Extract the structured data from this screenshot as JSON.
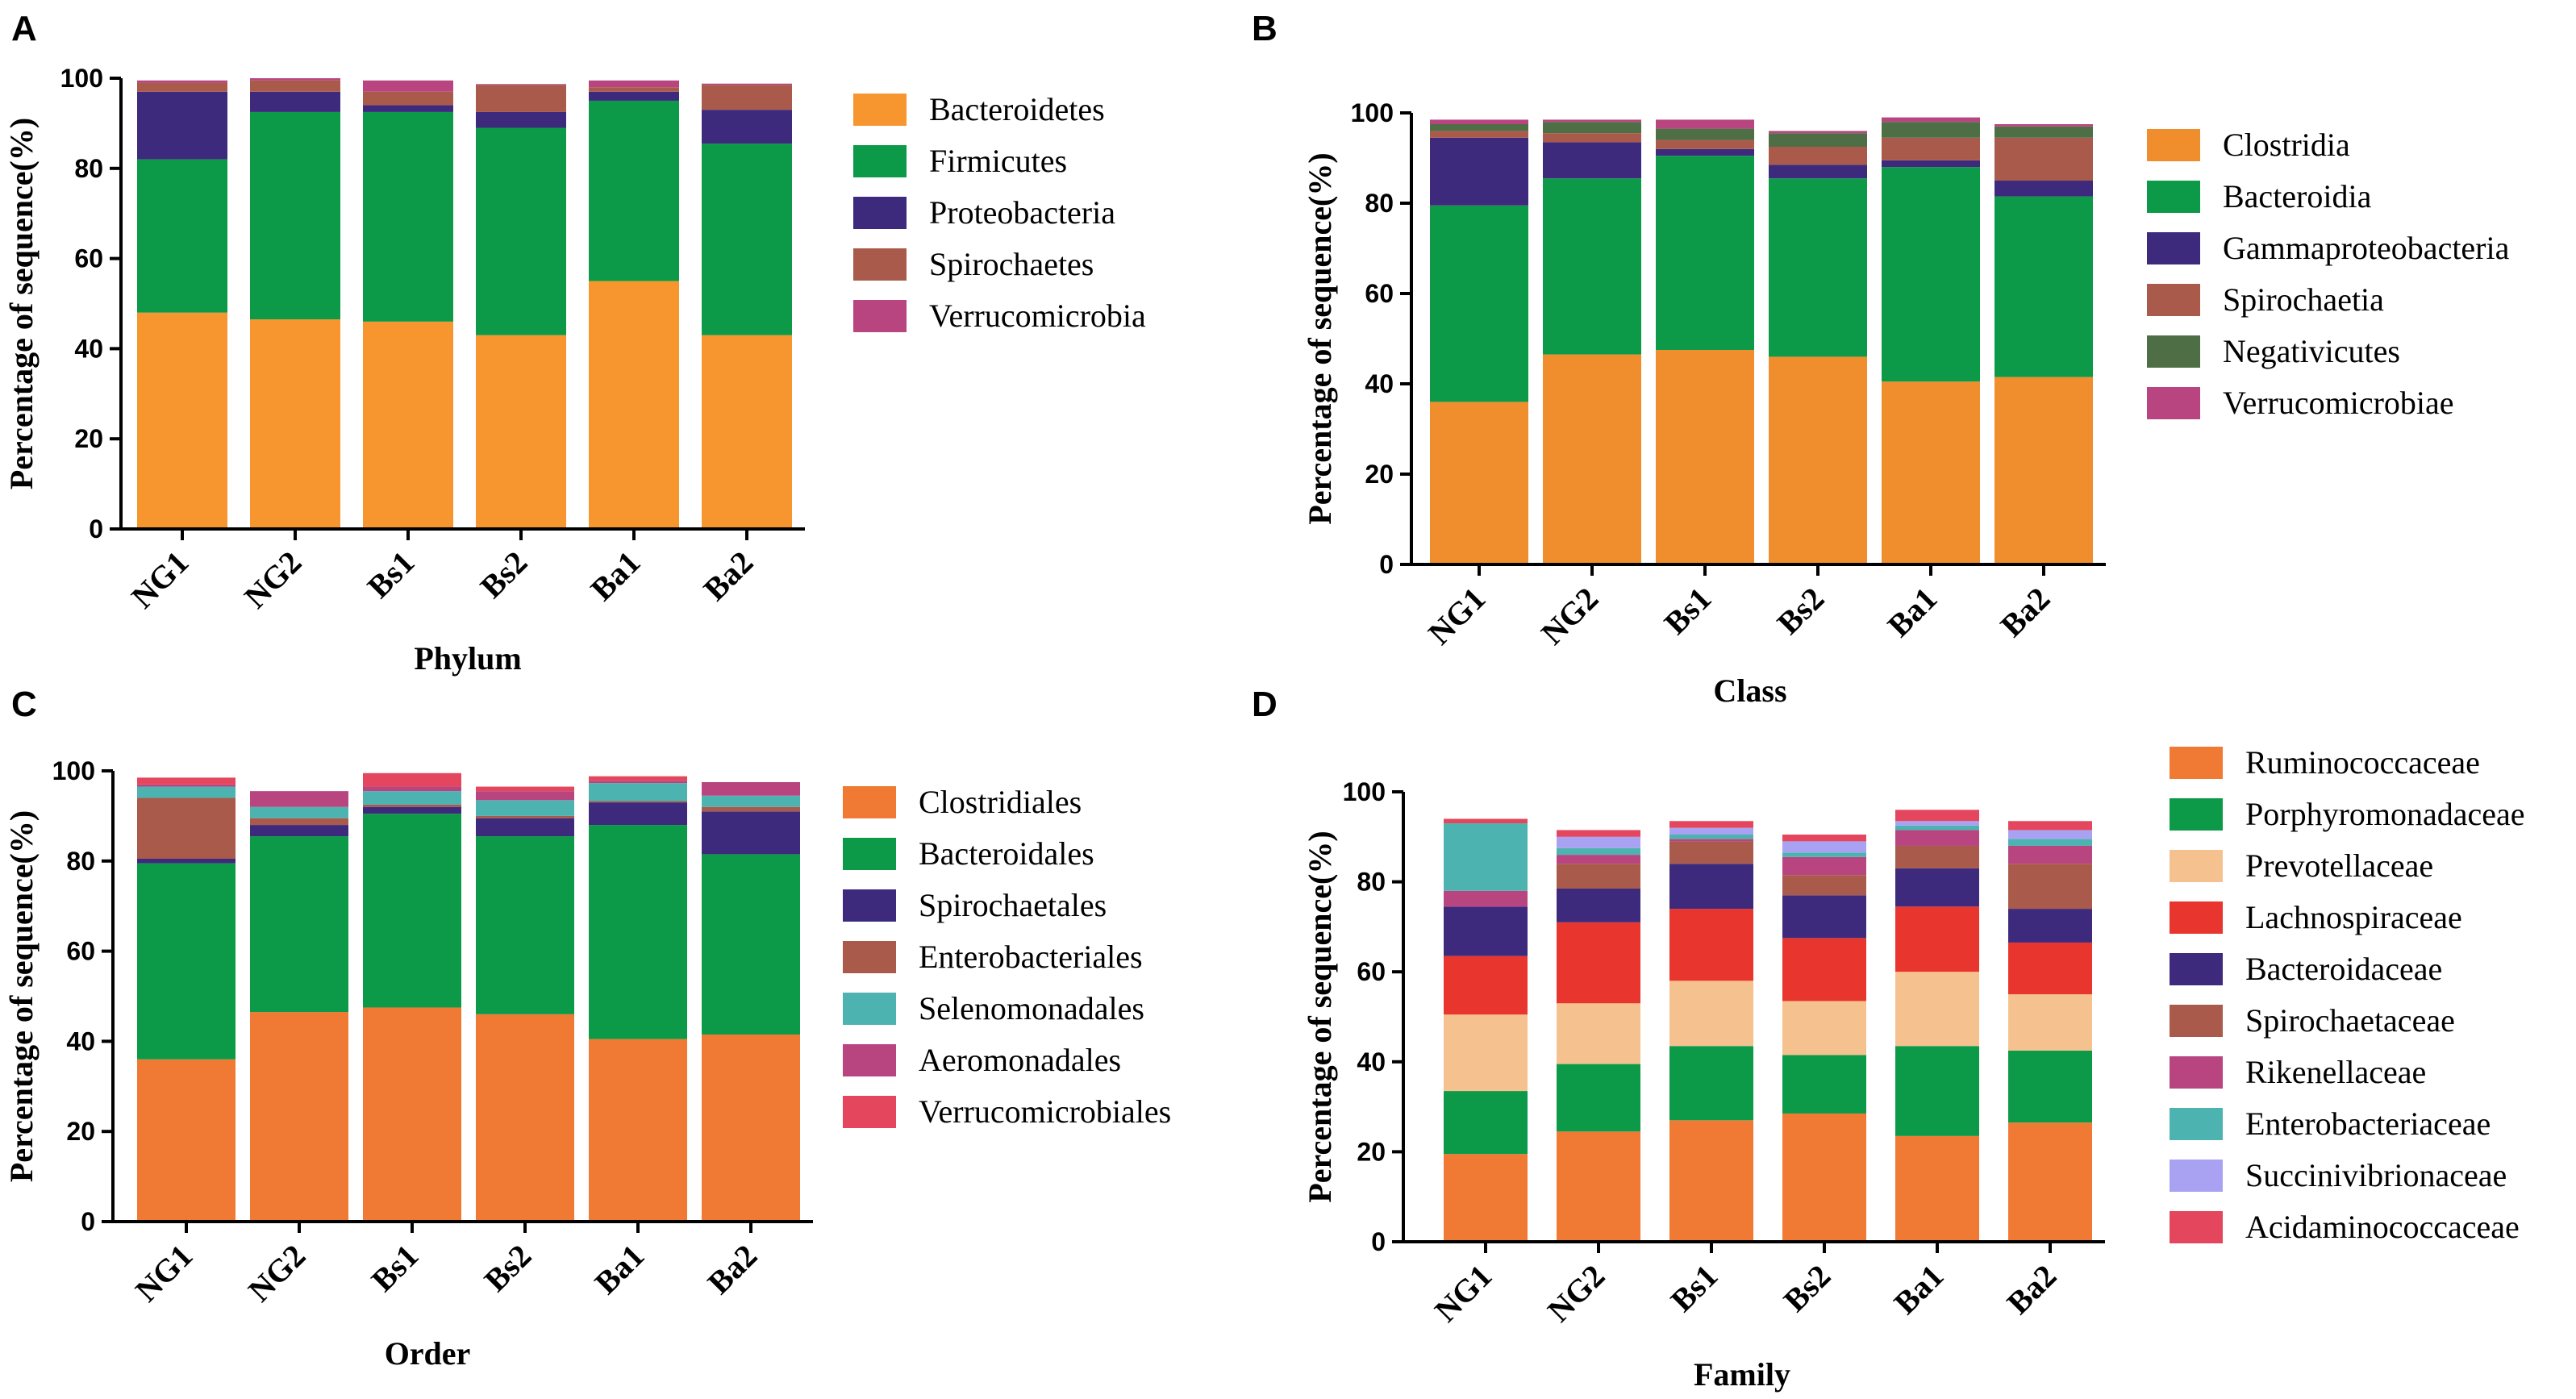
{
  "chart_data": [
    {
      "panel": "A",
      "type": "bar",
      "stacked": true,
      "categories": [
        "NG1",
        "NG2",
        "Bs1",
        "Bs2",
        "Ba1",
        "Ba2"
      ],
      "xlabel": "Phylum",
      "ylabel": "Percentage of sequence(%)",
      "ylim": [
        0,
        100
      ],
      "yticks": [
        0,
        20,
        40,
        60,
        80,
        100
      ],
      "legend_position": "right",
      "series": [
        {
          "name": "Bacteroidetes",
          "color": "#F7952E",
          "values": [
            48,
            46.5,
            46,
            43,
            55,
            43
          ]
        },
        {
          "name": "Firmicutes",
          "color": "#0D9A48",
          "values": [
            34,
            46,
            46.5,
            46,
            40,
            42.5
          ]
        },
        {
          "name": "Proteobacteria",
          "color": "#3D2A7D",
          "values": [
            15,
            4.5,
            1.5,
            3.5,
            2,
            7.5
          ]
        },
        {
          "name": "Spirochaetes",
          "color": "#A95A4A",
          "values": [
            2,
            2.5,
            3,
            6,
            1,
            5.5
          ]
        },
        {
          "name": "Verrucomicrobia",
          "color": "#B8457F",
          "values": [
            0.5,
            0.5,
            2.5,
            0.2,
            1.5,
            0.3
          ]
        }
      ]
    },
    {
      "panel": "B",
      "type": "bar",
      "stacked": true,
      "categories": [
        "NG1",
        "NG2",
        "Bs1",
        "Bs2",
        "Ba1",
        "Ba2"
      ],
      "xlabel": "Class",
      "ylabel": "Percentage of sequence(%)",
      "ylim": [
        0,
        100
      ],
      "yticks": [
        0,
        20,
        40,
        60,
        80,
        100
      ],
      "legend_position": "right",
      "series": [
        {
          "name": "Clostridia",
          "color": "#F08E2E",
          "values": [
            36,
            46.5,
            47.5,
            46,
            40.5,
            41.5
          ]
        },
        {
          "name": "Bacteroidia",
          "color": "#0D9A48",
          "values": [
            43.5,
            39,
            43,
            39.5,
            47.5,
            40
          ]
        },
        {
          "name": "Gammaproteobacteria",
          "color": "#3D2A7D",
          "values": [
            15,
            8,
            1.5,
            3,
            1.5,
            3.5
          ]
        },
        {
          "name": "Spirochaetia",
          "color": "#A95A4A",
          "values": [
            1.5,
            2,
            2,
            4,
            5,
            9.5
          ]
        },
        {
          "name": "Negativicutes",
          "color": "#4E6E46",
          "values": [
            1.5,
            2.5,
            2.5,
            3,
            3.5,
            2.5
          ]
        },
        {
          "name": "Verrucomicrobiae",
          "color": "#B8457F",
          "values": [
            1,
            0.5,
            2,
            0.5,
            1,
            0.5
          ]
        }
      ]
    },
    {
      "panel": "C",
      "type": "bar",
      "stacked": true,
      "categories": [
        "NG1",
        "NG2",
        "Bs1",
        "Bs2",
        "Ba1",
        "Ba2"
      ],
      "xlabel": "Order",
      "ylabel": "Percentage of sequence(%)",
      "ylim": [
        0,
        100
      ],
      "yticks": [
        0,
        20,
        40,
        60,
        80,
        100
      ],
      "legend_position": "right",
      "series": [
        {
          "name": "Clostridiales",
          "color": "#F07A33",
          "values": [
            36,
            46.5,
            47.5,
            46,
            40.5,
            41.5
          ]
        },
        {
          "name": "Bacteroidales",
          "color": "#0D9A48",
          "values": [
            43.5,
            39,
            43,
            39.5,
            47.5,
            40
          ]
        },
        {
          "name": "Spirochaetales",
          "color": "#3D2A7D",
          "values": [
            1,
            2.5,
            1.5,
            4,
            5,
            9.5
          ]
        },
        {
          "name": "Enterobacteriales",
          "color": "#A95A4A",
          "values": [
            13.5,
            1.5,
            0.5,
            0.5,
            0.3,
            1
          ]
        },
        {
          "name": "Selenomonadales",
          "color": "#4DB3B0",
          "values": [
            2.5,
            2.5,
            3,
            3.5,
            4,
            2.5
          ]
        },
        {
          "name": "Aeromonadales",
          "color": "#B8457F",
          "values": [
            0.5,
            3.5,
            1,
            2,
            0.5,
            3
          ]
        },
        {
          "name": "Verrucomicrobiales",
          "color": "#E4465D",
          "values": [
            1.5,
            0,
            3,
            1,
            1,
            0
          ]
        }
      ]
    },
    {
      "panel": "D",
      "type": "bar",
      "stacked": true,
      "categories": [
        "NG1",
        "NG2",
        "Bs1",
        "Bs2",
        "Ba1",
        "Ba2"
      ],
      "xlabel": "Family",
      "ylabel": "Percentage of sequence(%)",
      "ylim": [
        0,
        100
      ],
      "yticks": [
        0,
        20,
        40,
        60,
        80,
        100
      ],
      "legend_position": "right",
      "series": [
        {
          "name": "Ruminococcaceae",
          "color": "#F07A33",
          "values": [
            19.5,
            24.5,
            27,
            28.5,
            23.5,
            26.5
          ]
        },
        {
          "name": "Porphyromonadaceae",
          "color": "#0D9A48",
          "values": [
            14,
            15,
            16.5,
            13,
            20,
            16
          ]
        },
        {
          "name": "Prevotellaceae",
          "color": "#F5C28F",
          "values": [
            17,
            13.5,
            14.5,
            12,
            16.5,
            12.5
          ]
        },
        {
          "name": "Lachnospiraceae",
          "color": "#E8352E",
          "values": [
            13,
            18,
            16,
            14,
            14.5,
            11.5
          ]
        },
        {
          "name": "Bacteroidaceae",
          "color": "#3D2A7D",
          "values": [
            11,
            7.5,
            10,
            9.5,
            8.5,
            7.5
          ]
        },
        {
          "name": "Spirochaetaceae",
          "color": "#A95A4A",
          "values": [
            0,
            5.5,
            5,
            4.5,
            5,
            10
          ]
        },
        {
          "name": "Rikenellaceae",
          "color": "#B8457F",
          "values": [
            3.5,
            2,
            0.5,
            4,
            3.5,
            4
          ]
        },
        {
          "name": "Enterobacteriaceae",
          "color": "#4DB3B0",
          "values": [
            15,
            1.5,
            1,
            1,
            1,
            1.5
          ]
        },
        {
          "name": "Succinivibrionaceae",
          "color": "#A9A2F2",
          "values": [
            0,
            2.5,
            1.5,
            2.5,
            1,
            2
          ]
        },
        {
          "name": "Acidaminococcaceae",
          "color": "#E4465D",
          "values": [
            1,
            1.5,
            1.5,
            1.5,
            2.5,
            2
          ]
        }
      ]
    }
  ]
}
